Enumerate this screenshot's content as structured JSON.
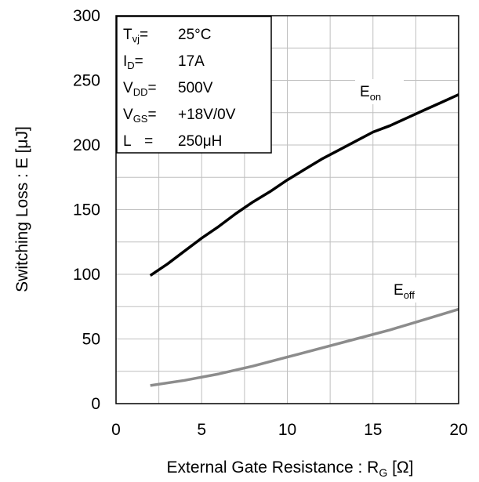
{
  "chart_data": {
    "type": "line",
    "title": "",
    "xlabel": "External Gate Resistance : R",
    "xlabel_sub": "G",
    "xlabel_unit": " [Ω]",
    "ylabel": "Switching Loss : E [μJ]",
    "xlim": [
      0,
      20
    ],
    "ylim": [
      0,
      300
    ],
    "x_ticks": [
      "0",
      "5",
      "10",
      "15",
      "20"
    ],
    "y_ticks": [
      "0",
      "50",
      "100",
      "150",
      "200",
      "250",
      "300"
    ],
    "grid": true,
    "series": [
      {
        "name": "E",
        "name_sub": "on",
        "color": "#000000",
        "points": [
          [
            2,
            99
          ],
          [
            3,
            108
          ],
          [
            4,
            118
          ],
          [
            5,
            128
          ],
          [
            6,
            137
          ],
          [
            7,
            147
          ],
          [
            8,
            156
          ],
          [
            9,
            164
          ],
          [
            10,
            173
          ],
          [
            11,
            181
          ],
          [
            12,
            189
          ],
          [
            13,
            196
          ],
          [
            14,
            203
          ],
          [
            15,
            210
          ],
          [
            16,
            215
          ],
          [
            17,
            221
          ],
          [
            18,
            227
          ],
          [
            19,
            233
          ],
          [
            20,
            239
          ]
        ]
      },
      {
        "name": "E",
        "name_sub": "off",
        "color": "#8c8c8c",
        "points": [
          [
            2,
            14
          ],
          [
            4,
            18
          ],
          [
            6,
            23
          ],
          [
            8,
            29
          ],
          [
            10,
            36
          ],
          [
            12,
            43
          ],
          [
            14,
            50
          ],
          [
            16,
            57
          ],
          [
            18,
            65
          ],
          [
            20,
            73
          ]
        ]
      }
    ],
    "conditions": [
      {
        "sym": "T",
        "sub": "vj",
        "eq": "=",
        "value": "25°C"
      },
      {
        "sym": "I",
        "sub": "D",
        "eq": "=",
        "value": "17A"
      },
      {
        "sym": "V",
        "sub": "DD",
        "eq": "=",
        "value": "500V"
      },
      {
        "sym": "V",
        "sub": "GS",
        "eq": "=",
        "value": "+18V/0V"
      },
      {
        "sym": "L",
        "sub": "",
        "eq": "=",
        "value": "250μH"
      }
    ]
  }
}
